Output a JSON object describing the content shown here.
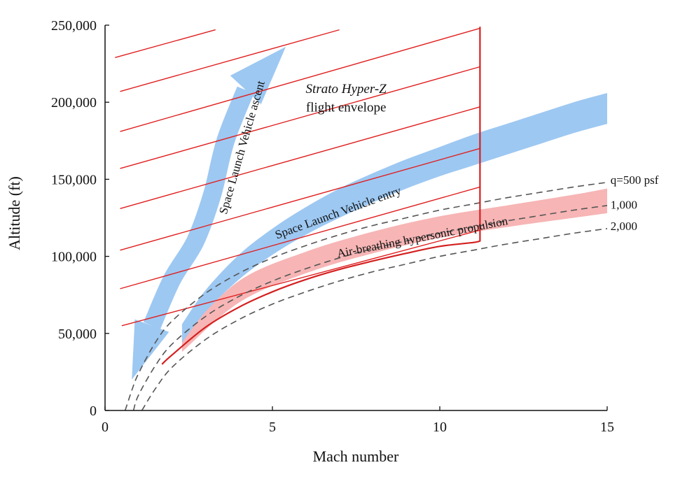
{
  "chart_data": {
    "type": "line",
    "title": "",
    "xlabel": "Mach number",
    "ylabel": "Altitude (ft)",
    "xlim": [
      0,
      15
    ],
    "ylim": [
      0,
      250000
    ],
    "xticks": [
      0,
      5,
      10,
      15
    ],
    "yticks": [
      0,
      50000,
      100000,
      150000,
      200000,
      250000
    ],
    "xtick_labels": [
      "0",
      "5",
      "10",
      "15"
    ],
    "ytick_labels": [
      "0",
      "50,000",
      "100,000",
      "150,000",
      "200,000",
      "250,000"
    ],
    "grid": false,
    "series": [
      {
        "name": "q=500 psf",
        "style": "dashed",
        "color": "#555555",
        "x": [
          0.6,
          0.8,
          1,
          1.5,
          2,
          3,
          4,
          5,
          6,
          7,
          8,
          9,
          10,
          11,
          12,
          13,
          14,
          15
        ],
        "y": [
          0,
          13000,
          24000,
          44000,
          58000,
          76000,
          89000,
          99000,
          107000,
          114000,
          120000,
          125000,
          130000,
          134000,
          138000,
          141500,
          145000,
          148000
        ]
      },
      {
        "name": "1,000",
        "style": "dashed",
        "color": "#555555",
        "x": [
          0.85,
          1,
          1.5,
          2,
          3,
          4,
          5,
          6,
          7,
          8,
          9,
          10,
          11,
          12,
          13,
          14,
          15
        ],
        "y": [
          0,
          10000,
          29000,
          43000,
          61000,
          74000,
          84000,
          92000,
          99000,
          105000,
          110000,
          115000,
          119000,
          123000,
          126500,
          130000,
          133000
        ]
      },
      {
        "name": "2,000",
        "style": "dashed",
        "color": "#555555",
        "x": [
          1.1,
          1.5,
          2,
          3,
          4,
          5,
          6,
          7,
          8,
          9,
          10,
          11,
          12,
          13,
          14,
          15
        ],
        "y": [
          0,
          14000,
          28000,
          46000,
          59000,
          69000,
          77000,
          84000,
          90000,
          95000,
          100000,
          104000,
          108000,
          111500,
          115000,
          118000
        ]
      },
      {
        "name": "Strato Hyper-Z flight envelope boundary",
        "style": "solid",
        "color": "#d42020",
        "x": [
          1.7,
          2,
          3,
          4,
          5,
          6,
          7,
          8,
          9,
          10,
          11,
          11.2,
          11.2
        ],
        "y": [
          30000,
          36000,
          54000,
          67000,
          77000,
          85000,
          91500,
          97000,
          102000,
          106500,
          109000,
          110000,
          249000
        ]
      }
    ],
    "bands": [
      {
        "name": "Air-breathing hypersonic propulsion",
        "color": "#f7b5b5",
        "x": [
          2.3,
          4,
          6,
          8,
          10,
          12,
          14,
          15
        ],
        "y_low": [
          38000,
          70000,
          89000,
          102000,
          112000,
          119000,
          125000,
          128000
        ],
        "y_high": [
          48000,
          84000,
          103000,
          116000,
          126000,
          133000,
          140000,
          144000
        ]
      },
      {
        "name": "Space Launch Vehicle entry",
        "color": "#9dc8f2",
        "x": [
          2.3,
          3,
          4,
          5,
          6,
          7,
          8,
          9,
          10,
          11,
          12,
          13,
          14,
          15
        ],
        "y_low": [
          44000,
          64000,
          85000,
          101000,
          114000,
          125000,
          135000,
          144000,
          152000,
          159000,
          166000,
          173000,
          180000,
          186000
        ],
        "y_high": [
          56000,
          78000,
          101000,
          118000,
          132000,
          144000,
          154000,
          163000,
          171000,
          179000,
          186000,
          193000,
          200000,
          206000
        ]
      }
    ],
    "hatch": {
      "name": "Strato Hyper-Z flight envelope",
      "color": "#e02020",
      "lines": [
        {
          "x": [
            0.3,
            3.3
          ],
          "y": [
            229000,
            247000
          ]
        },
        {
          "x": [
            0.45,
            7.0
          ],
          "y": [
            207000,
            247000
          ]
        },
        {
          "x": [
            0.45,
            11.2
          ],
          "y": [
            181000,
            248000
          ]
        },
        {
          "x": [
            0.45,
            11.2
          ],
          "y": [
            157000,
            223000
          ]
        },
        {
          "x": [
            0.45,
            11.2
          ],
          "y": [
            131000,
            197000
          ]
        },
        {
          "x": [
            0.45,
            11.2
          ],
          "y": [
            104000,
            170000
          ]
        },
        {
          "x": [
            0.45,
            11.2
          ],
          "y": [
            79000,
            145000
          ]
        },
        {
          "x": [
            0.5,
            11.2
          ],
          "y": [
            55000,
            117000
          ]
        }
      ]
    },
    "arrows": [
      {
        "name": "Space Launch Vehicle ascent",
        "color": "#9dc8f2",
        "x": [
          5.4,
          4.2,
          3.6,
          3.2,
          2.7,
          2.0,
          1.4,
          0.8
        ],
        "y": [
          236000,
          208000,
          175000,
          140000,
          110000,
          85000,
          55000,
          20000
        ]
      }
    ],
    "annotations": [
      {
        "name": "envelope-title-italic",
        "text": "Strato Hyper-Z",
        "x": 7.2,
        "y": 206000
      },
      {
        "name": "envelope-title",
        "text": "flight envelope",
        "x": 7.2,
        "y": 194000
      },
      {
        "name": "ascent-label",
        "text": "Space Launch Vehicle ascent",
        "x": 4.2,
        "y": 170000,
        "rotate": -74
      },
      {
        "name": "entry-label",
        "text": "Space Launch Vehicle entry",
        "x": 7.0,
        "y": 126000,
        "rotate": -20
      },
      {
        "name": "propulsion-label",
        "text": "Air-breathing  hypersonic  propulsion",
        "x": 9.5,
        "y": 110000,
        "rotate": -11
      },
      {
        "name": "q-label-500",
        "text": "q=500 psf",
        "x": 15.1,
        "y": 147000
      },
      {
        "name": "q-label-1000",
        "text": "1,000",
        "x": 15.1,
        "y": 131000
      },
      {
        "name": "q-label-2000",
        "text": "2,000",
        "x": 15.1,
        "y": 117000
      }
    ]
  }
}
